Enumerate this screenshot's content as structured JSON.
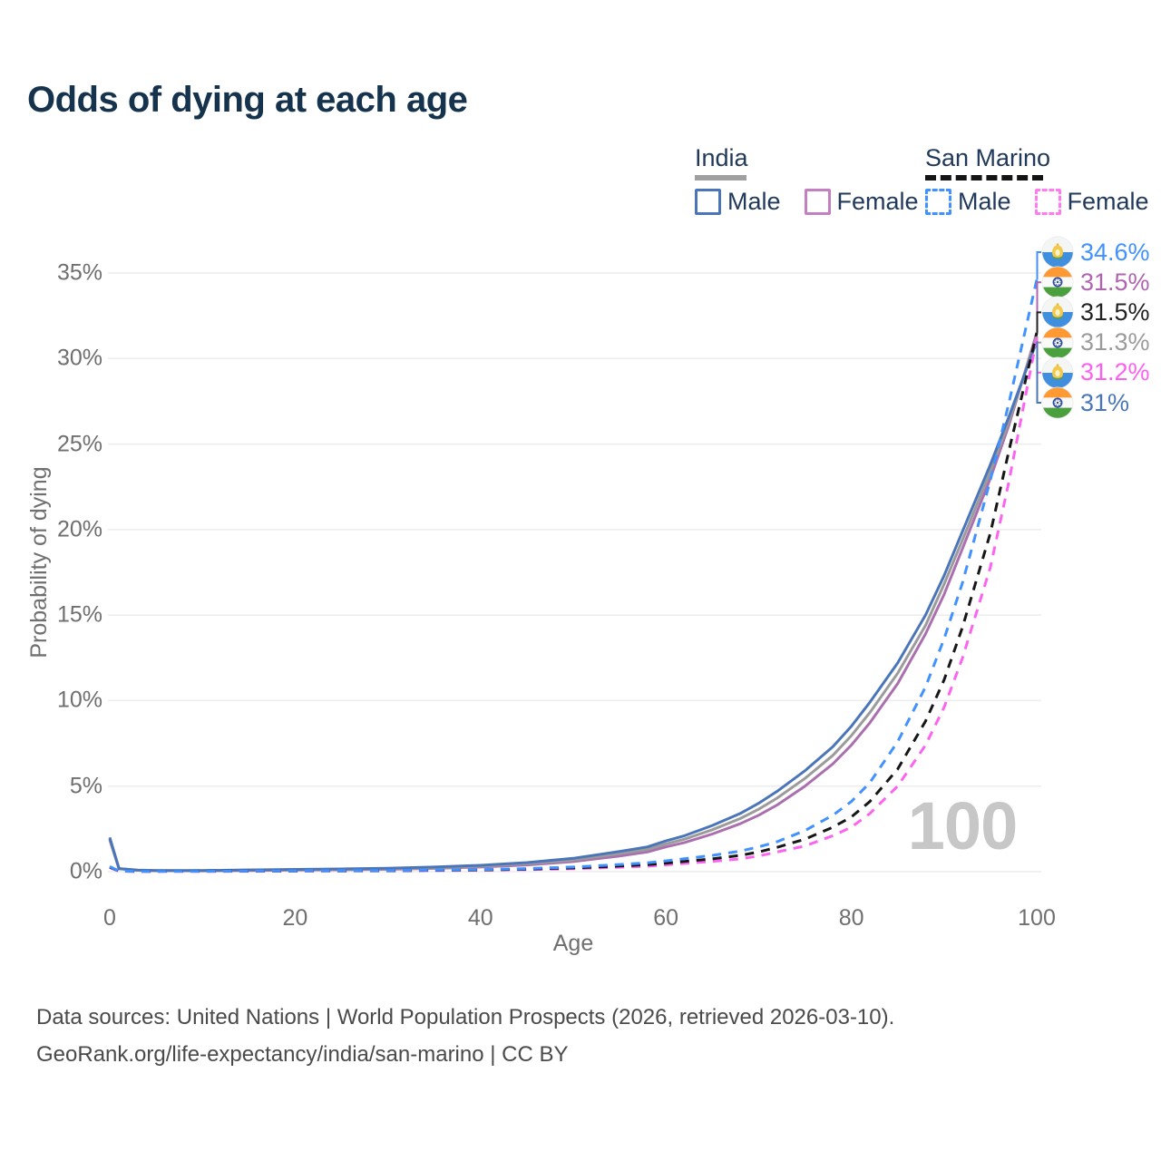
{
  "title": "Odds of dying at each age",
  "legend": {
    "groups": [
      {
        "title": "India",
        "line_style": "solid",
        "underline_color": "#a0a0a0",
        "items": [
          {
            "label": "Male",
            "color": "#4a76b9"
          },
          {
            "label": "Female",
            "color": "#c47fc0"
          }
        ]
      },
      {
        "title": "San Marino",
        "line_style": "dashed",
        "underline_color": "#141414",
        "items": [
          {
            "label": "Male",
            "color": "#4191ff"
          },
          {
            "label": "Female",
            "color": "#ff7cf0"
          }
        ]
      }
    ]
  },
  "axes": {
    "x": {
      "title": "Age",
      "ticks": [
        "0",
        "20",
        "40",
        "60",
        "80",
        "100"
      ]
    },
    "y": {
      "title": "Probability of dying",
      "ticks": [
        "0%",
        "5%",
        "10%",
        "15%",
        "20%",
        "25%",
        "30%",
        "35%"
      ]
    }
  },
  "hover_age_label": "100",
  "chart_data": {
    "type": "line",
    "title": "Odds of dying at each age",
    "xlabel": "Age",
    "ylabel": "Probability of dying",
    "xlim": [
      0,
      100
    ],
    "ylim": [
      0,
      35
    ],
    "x_ticks": [
      0,
      20,
      40,
      60,
      80,
      100
    ],
    "y_ticks_pct": [
      0,
      5,
      10,
      15,
      20,
      25,
      30,
      35
    ],
    "grid": "horizontal-only",
    "legend_position": "top-right",
    "series": [
      {
        "name": "India Female",
        "country": "India",
        "sex": "Female",
        "style": "solid",
        "color": "#aa6fae",
        "end_value_pct": 31.5,
        "points": [
          [
            0,
            1.85
          ],
          [
            1,
            0.17
          ],
          [
            3,
            0.08
          ],
          [
            5,
            0.06
          ],
          [
            10,
            0.05
          ],
          [
            15,
            0.07
          ],
          [
            20,
            0.09
          ],
          [
            25,
            0.11
          ],
          [
            30,
            0.14
          ],
          [
            35,
            0.19
          ],
          [
            40,
            0.27
          ],
          [
            45,
            0.39
          ],
          [
            50,
            0.59
          ],
          [
            55,
            0.92
          ],
          [
            58,
            1.15
          ],
          [
            60,
            1.45
          ],
          [
            62,
            1.7
          ],
          [
            65,
            2.2
          ],
          [
            68,
            2.8
          ],
          [
            70,
            3.3
          ],
          [
            72,
            3.9
          ],
          [
            75,
            5.0
          ],
          [
            78,
            6.3
          ],
          [
            80,
            7.4
          ],
          [
            82,
            8.7
          ],
          [
            85,
            11.0
          ],
          [
            88,
            13.9
          ],
          [
            90,
            16.2
          ],
          [
            92,
            18.9
          ],
          [
            95,
            23.0
          ],
          [
            97,
            26.1
          ],
          [
            100,
            31.5
          ]
        ]
      },
      {
        "name": "India Total",
        "country": "India",
        "sex": "Both",
        "style": "solid",
        "color": "#9b9b9b",
        "end_value_pct": 31.3,
        "points": [
          [
            0,
            1.93
          ],
          [
            1,
            0.18
          ],
          [
            3,
            0.08
          ],
          [
            5,
            0.06
          ],
          [
            10,
            0.06
          ],
          [
            15,
            0.09
          ],
          [
            20,
            0.11
          ],
          [
            25,
            0.14
          ],
          [
            30,
            0.17
          ],
          [
            35,
            0.23
          ],
          [
            40,
            0.32
          ],
          [
            45,
            0.46
          ],
          [
            50,
            0.68
          ],
          [
            55,
            1.05
          ],
          [
            58,
            1.3
          ],
          [
            60,
            1.62
          ],
          [
            62,
            1.9
          ],
          [
            65,
            2.45
          ],
          [
            68,
            3.1
          ],
          [
            70,
            3.65
          ],
          [
            72,
            4.3
          ],
          [
            75,
            5.45
          ],
          [
            78,
            6.8
          ],
          [
            80,
            7.95
          ],
          [
            82,
            9.3
          ],
          [
            85,
            11.6
          ],
          [
            88,
            14.4
          ],
          [
            90,
            16.8
          ],
          [
            92,
            19.4
          ],
          [
            95,
            23.4
          ],
          [
            97,
            26.3
          ],
          [
            100,
            31.3
          ]
        ]
      },
      {
        "name": "India Male",
        "country": "India",
        "sex": "Male",
        "style": "solid",
        "color": "#4a76b9",
        "end_value_pct": 31,
        "points": [
          [
            0,
            2.0
          ],
          [
            1,
            0.18
          ],
          [
            3,
            0.09
          ],
          [
            5,
            0.07
          ],
          [
            10,
            0.07
          ],
          [
            15,
            0.1
          ],
          [
            20,
            0.13
          ],
          [
            25,
            0.16
          ],
          [
            30,
            0.2
          ],
          [
            35,
            0.27
          ],
          [
            40,
            0.37
          ],
          [
            45,
            0.53
          ],
          [
            50,
            0.78
          ],
          [
            55,
            1.18
          ],
          [
            58,
            1.45
          ],
          [
            60,
            1.8
          ],
          [
            62,
            2.1
          ],
          [
            65,
            2.7
          ],
          [
            68,
            3.4
          ],
          [
            70,
            4.0
          ],
          [
            72,
            4.7
          ],
          [
            75,
            5.9
          ],
          [
            78,
            7.3
          ],
          [
            80,
            8.5
          ],
          [
            82,
            9.9
          ],
          [
            85,
            12.2
          ],
          [
            88,
            15.0
          ],
          [
            90,
            17.3
          ],
          [
            92,
            19.9
          ],
          [
            95,
            23.8
          ],
          [
            97,
            26.6
          ],
          [
            100,
            31.0
          ]
        ]
      },
      {
        "name": "San Marino Female",
        "country": "San Marino",
        "sex": "Female",
        "style": "dashed",
        "color": "#fc64f0",
        "end_value_pct": 31.2,
        "points": [
          [
            0,
            0.24
          ],
          [
            1,
            0.02
          ],
          [
            3,
            0.01
          ],
          [
            5,
            0.01
          ],
          [
            10,
            0.01
          ],
          [
            15,
            0.02
          ],
          [
            20,
            0.03
          ],
          [
            25,
            0.04
          ],
          [
            30,
            0.05
          ],
          [
            35,
            0.06
          ],
          [
            40,
            0.08
          ],
          [
            45,
            0.12
          ],
          [
            50,
            0.17
          ],
          [
            55,
            0.26
          ],
          [
            58,
            0.32
          ],
          [
            60,
            0.4
          ],
          [
            62,
            0.48
          ],
          [
            65,
            0.6
          ],
          [
            68,
            0.75
          ],
          [
            70,
            0.92
          ],
          [
            72,
            1.15
          ],
          [
            75,
            1.5
          ],
          [
            78,
            2.1
          ],
          [
            80,
            2.6
          ],
          [
            82,
            3.4
          ],
          [
            85,
            5.0
          ],
          [
            88,
            7.4
          ],
          [
            90,
            9.6
          ],
          [
            92,
            12.5
          ],
          [
            95,
            17.8
          ],
          [
            97,
            22.8
          ],
          [
            100,
            31.2
          ]
        ]
      },
      {
        "name": "San Marino Total",
        "country": "San Marino",
        "sex": "Both",
        "style": "dashed",
        "color": "#161616",
        "end_value_pct": 31.5,
        "points": [
          [
            0,
            0.27
          ],
          [
            1,
            0.03
          ],
          [
            3,
            0.02
          ],
          [
            5,
            0.02
          ],
          [
            10,
            0.03
          ],
          [
            15,
            0.04
          ],
          [
            20,
            0.04
          ],
          [
            25,
            0.05
          ],
          [
            30,
            0.06
          ],
          [
            35,
            0.08
          ],
          [
            40,
            0.1
          ],
          [
            45,
            0.15
          ],
          [
            50,
            0.22
          ],
          [
            55,
            0.33
          ],
          [
            58,
            0.41
          ],
          [
            60,
            0.5
          ],
          [
            62,
            0.6
          ],
          [
            65,
            0.75
          ],
          [
            68,
            0.95
          ],
          [
            70,
            1.15
          ],
          [
            72,
            1.42
          ],
          [
            75,
            1.9
          ],
          [
            78,
            2.6
          ],
          [
            80,
            3.2
          ],
          [
            82,
            4.1
          ],
          [
            85,
            6.0
          ],
          [
            88,
            8.8
          ],
          [
            90,
            11.2
          ],
          [
            92,
            14.3
          ],
          [
            95,
            19.8
          ],
          [
            97,
            24.6
          ],
          [
            100,
            31.5
          ]
        ]
      },
      {
        "name": "San Marino Male",
        "country": "San Marino",
        "sex": "Male",
        "style": "dashed",
        "color": "#4191ff",
        "end_value_pct": 34.6,
        "points": [
          [
            0,
            0.3
          ],
          [
            1,
            0.03
          ],
          [
            3,
            0.02
          ],
          [
            5,
            0.02
          ],
          [
            10,
            0.02
          ],
          [
            15,
            0.04
          ],
          [
            20,
            0.05
          ],
          [
            25,
            0.06
          ],
          [
            30,
            0.07
          ],
          [
            35,
            0.09
          ],
          [
            40,
            0.12
          ],
          [
            45,
            0.18
          ],
          [
            50,
            0.27
          ],
          [
            55,
            0.42
          ],
          [
            58,
            0.52
          ],
          [
            60,
            0.63
          ],
          [
            62,
            0.76
          ],
          [
            65,
            0.95
          ],
          [
            68,
            1.2
          ],
          [
            70,
            1.45
          ],
          [
            72,
            1.75
          ],
          [
            75,
            2.4
          ],
          [
            78,
            3.3
          ],
          [
            80,
            4.1
          ],
          [
            82,
            5.2
          ],
          [
            85,
            7.6
          ],
          [
            88,
            10.8
          ],
          [
            90,
            13.6
          ],
          [
            92,
            16.9
          ],
          [
            95,
            22.9
          ],
          [
            97,
            27.4
          ],
          [
            100,
            34.6
          ]
        ]
      }
    ]
  },
  "end_labels": [
    {
      "value": "34.6%",
      "series": "San Marino Male",
      "flag": "san-marino",
      "color": "#4191ff"
    },
    {
      "value": "31.5%",
      "series": "India Female",
      "flag": "india",
      "color": "#b064b0"
    },
    {
      "value": "31.5%",
      "series": "San Marino Total",
      "flag": "san-marino",
      "color": "#222222"
    },
    {
      "value": "31.3%",
      "series": "India Total",
      "flag": "india",
      "color": "#9b9b9b"
    },
    {
      "value": "31.2%",
      "series": "San Marino Female",
      "flag": "san-marino",
      "color": "#ff5ff0"
    },
    {
      "value": "31%",
      "series": "India Male",
      "flag": "india",
      "color": "#4a76b9"
    }
  ],
  "footer": {
    "line1": "Data sources: United Nations | World Population Prospects (2026, retrieved 2026-03-10).",
    "line2": "GeoRank.org/life-expectancy/india/san-marino | CC BY"
  }
}
